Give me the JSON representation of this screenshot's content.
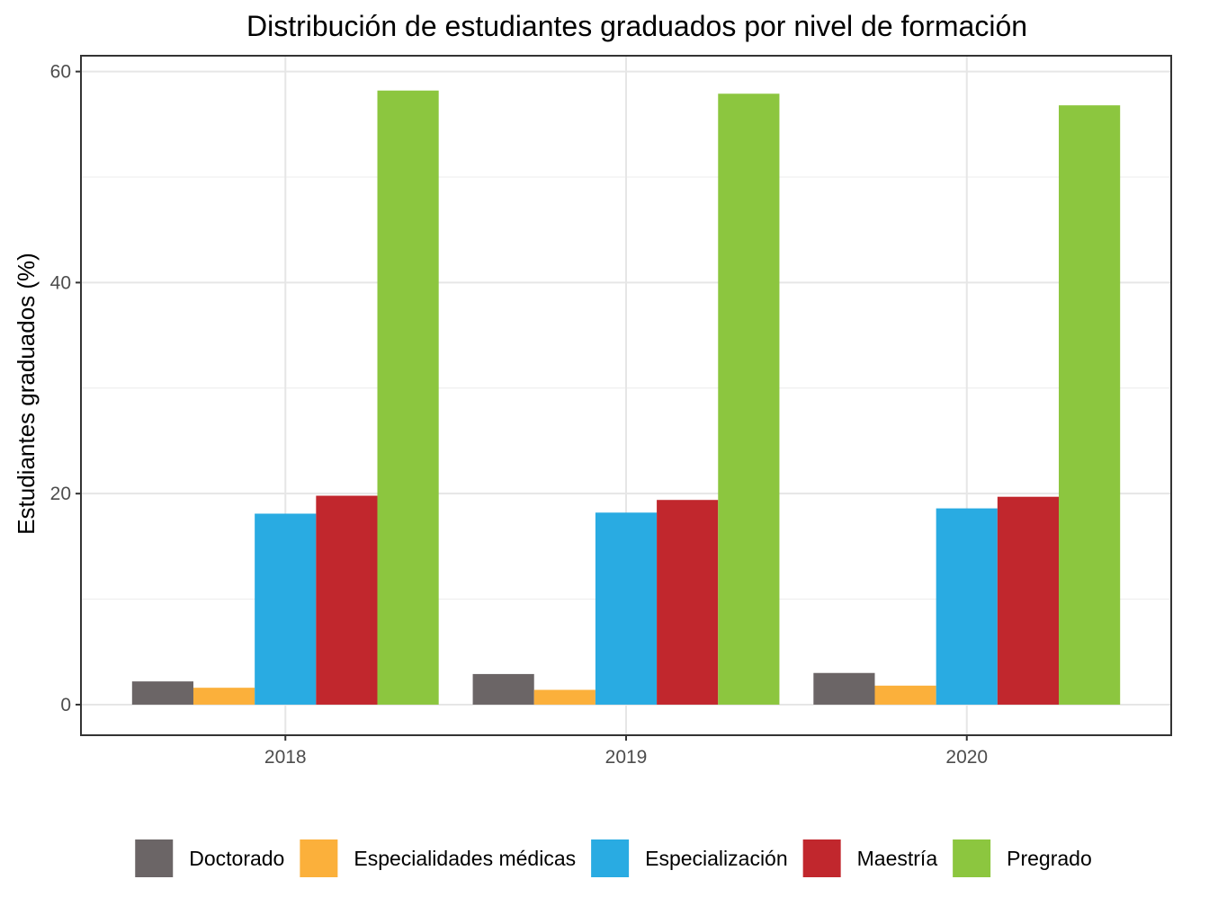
{
  "chart_data": {
    "type": "bar",
    "title": "Distribución de estudiantes graduados por nivel de formación",
    "xlabel": "",
    "ylabel": "Estudiantes graduados (%)",
    "ylim": [
      -2.9,
      61.5
    ],
    "y_ticks": [
      0,
      20,
      40,
      60
    ],
    "y_tick_labels": [
      "0",
      "20",
      "40",
      "60"
    ],
    "grid": true,
    "legend_position": "bottom",
    "categories": [
      "2018",
      "2019",
      "2020"
    ],
    "series": [
      {
        "name": "Doctorado",
        "color": "#6B6566",
        "values": [
          2.2,
          2.9,
          3.0
        ]
      },
      {
        "name": "Especialidades médicas",
        "color": "#FBB03B",
        "values": [
          1.6,
          1.4,
          1.8
        ]
      },
      {
        "name": "Especialización",
        "color": "#29ABE2",
        "values": [
          18.1,
          18.2,
          18.6
        ]
      },
      {
        "name": "Maestría",
        "color": "#C1272D",
        "values": [
          19.8,
          19.4,
          19.7
        ]
      },
      {
        "name": "Pregrado",
        "color": "#8CC63F",
        "values": [
          58.2,
          57.9,
          56.8
        ]
      }
    ]
  }
}
